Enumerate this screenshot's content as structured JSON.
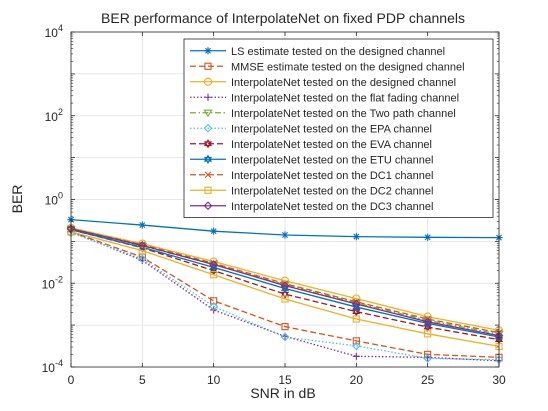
{
  "chart_data": {
    "type": "line",
    "title": "BER performance of InterpolateNet on fixed PDP channels",
    "xlabel": "SNR in dB",
    "ylabel": "BER",
    "yscale": "log",
    "xlim": [
      0,
      30
    ],
    "ylim": [
      0.0001,
      10000
    ],
    "xticks": [
      0,
      5,
      10,
      15,
      20,
      25,
      30
    ],
    "xtick_labels": [
      "0",
      "5",
      "10",
      "15",
      "20",
      "25",
      "30"
    ],
    "ytick_labels": [
      {
        "value": 0.0001,
        "base": "10",
        "exp": "-4"
      },
      {
        "value": 0.01,
        "base": "10",
        "exp": "-2"
      },
      {
        "value": 1,
        "base": "10",
        "exp": "0"
      },
      {
        "value": 100,
        "base": "10",
        "exp": "2"
      },
      {
        "value": 10000,
        "base": "10",
        "exp": "4"
      }
    ],
    "grid": true,
    "legend_position": "top-right",
    "x": [
      0,
      5,
      10,
      15,
      20,
      25,
      30
    ],
    "series": [
      {
        "name": "LS estimate tested on the designed channel",
        "color": "#0072BD",
        "dash": "solid",
        "marker": "asterisk",
        "values": [
          0.33,
          0.245,
          0.175,
          0.142,
          0.13,
          0.125,
          0.123
        ]
      },
      {
        "name": "MMSE estimate tested on the designed channel",
        "color": "#D95319",
        "dash": "dashed",
        "marker": "square",
        "values": [
          0.17,
          0.042,
          0.0038,
          0.00092,
          0.00042,
          0.0002,
          0.00017
        ]
      },
      {
        "name": "InterpolateNet tested on the designed channel",
        "color": "#EDB120",
        "dash": "solid",
        "marker": "circle",
        "values": [
          0.21,
          0.088,
          0.033,
          0.0115,
          0.0043,
          0.0016,
          0.00075
        ]
      },
      {
        "name": "InterpolateNet tested on the flat fading channel",
        "color": "#7E2F8E",
        "dash": "dotted",
        "marker": "plus",
        "values": [
          0.17,
          0.035,
          0.0023,
          0.00054,
          0.00018,
          0.00017,
          0.00014
        ]
      },
      {
        "name": "InterpolateNet tested on the Two path channel",
        "color": "#77AC30",
        "dash": "dashdot",
        "marker": "triangle-down",
        "values": [
          0.2,
          0.078,
          0.028,
          0.0092,
          0.0034,
          0.0013,
          0.00061
        ]
      },
      {
        "name": "InterpolateNet tested on the EPA channel",
        "color": "#4DBEEE",
        "dash": "dotted",
        "marker": "diamond",
        "values": [
          0.16,
          0.038,
          0.0028,
          0.00052,
          0.00032,
          0.00016,
          0.00015
        ]
      },
      {
        "name": "InterpolateNet tested on the EVA channel",
        "color": "#A2142F",
        "dash": "dashed",
        "marker": "hexagram",
        "values": [
          0.19,
          0.07,
          0.02,
          0.0055,
          0.0021,
          0.0009,
          0.00045
        ]
      },
      {
        "name": "InterpolateNet tested on the ETU channel",
        "color": "#0072BD",
        "dash": "solid",
        "marker": "hexagram",
        "values": [
          0.19,
          0.072,
          0.024,
          0.0075,
          0.0027,
          0.0011,
          0.00052
        ]
      },
      {
        "name": "InterpolateNet tested on the DC1 channel",
        "color": "#D95319",
        "dash": "dashed",
        "marker": "x",
        "values": [
          0.2,
          0.083,
          0.03,
          0.0098,
          0.0036,
          0.0014,
          0.00066
        ]
      },
      {
        "name": "InterpolateNet tested on the DC2 channel",
        "color": "#EDB120",
        "dash": "solid",
        "marker": "square",
        "values": [
          0.17,
          0.06,
          0.016,
          0.0042,
          0.0014,
          0.00062,
          0.00031
        ]
      },
      {
        "name": "InterpolateNet tested on the DC3 channel",
        "color": "#7E2F8E",
        "dash": "solid",
        "marker": "diamond",
        "values": [
          0.2,
          0.08,
          0.028,
          0.0088,
          0.0032,
          0.0012,
          0.00056
        ]
      }
    ]
  }
}
